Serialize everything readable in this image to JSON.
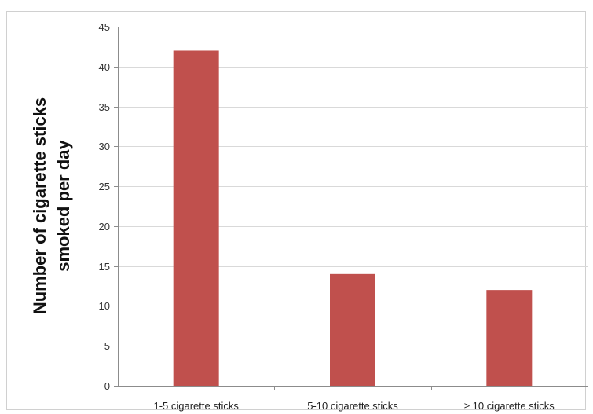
{
  "chart_data": {
    "type": "bar",
    "categories": [
      "1-5 cigarette sticks",
      "5-10 cigarette sticks",
      "≥ 10 cigarette sticks"
    ],
    "values": [
      42,
      14,
      12
    ],
    "title": "",
    "xlabel": "",
    "ylabel_lines": [
      "Number of cigarette sticks",
      "smoked per day"
    ],
    "ylim": [
      0,
      45
    ],
    "yticks": [
      0,
      5,
      10,
      15,
      20,
      25,
      30,
      35,
      40,
      45
    ],
    "grid": true,
    "legend": "none",
    "bar_color": "#c0504d"
  }
}
